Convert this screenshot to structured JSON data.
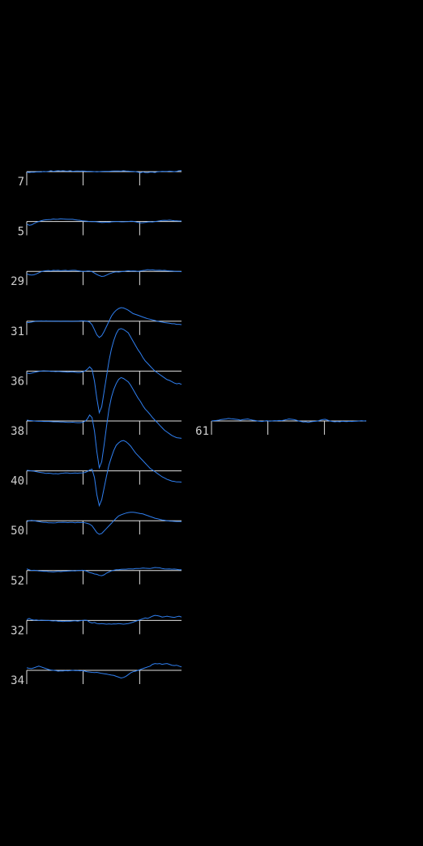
{
  "colors": {
    "background": "#000000",
    "trace": "#2f7ff0",
    "axis": "#e0e0e0",
    "label": "#cfcfcf"
  },
  "chart_data": {
    "type": "line",
    "description_scale": "waveform amplitude, arbitrary units (positive = up)",
    "x": [
      0,
      1,
      2,
      3,
      4,
      5,
      6,
      7,
      8,
      9,
      10,
      11,
      12,
      13,
      14,
      15,
      16,
      17,
      18,
      19,
      20,
      21,
      22,
      23,
      24,
      25,
      26,
      27,
      28,
      29,
      30,
      31,
      32,
      33,
      34,
      35,
      36,
      37,
      38,
      39,
      40,
      41,
      42,
      43,
      44,
      45,
      46,
      47,
      48,
      49,
      50,
      51,
      52,
      53,
      54,
      55,
      56,
      57,
      58,
      59,
      60,
      61,
      62,
      63,
      64
    ],
    "xlim": [
      0,
      64
    ],
    "xticks": [
      0,
      23.3,
      46.7
    ],
    "ylim": [
      -1,
      1
    ],
    "columns": [
      {
        "channels": [
          {
            "label": "7",
            "values": [
              -0.03,
              -0.05,
              -0.03,
              -0.04,
              -0.02,
              -0.01,
              -0.02,
              0.01,
              0.0,
              0.02,
              0.05,
              0.02,
              0.04,
              0.05,
              0.04,
              0.05,
              0.04,
              0.03,
              0.05,
              0.02,
              0.03,
              0.04,
              0.03,
              0.04,
              0.03,
              0.02,
              0.02,
              0.01,
              0.0,
              -0.01,
              0.0,
              0.01,
              0.02,
              0.02,
              0.02,
              0.03,
              0.04,
              0.04,
              0.04,
              0.03,
              0.05,
              0.04,
              0.03,
              0.02,
              0.01,
              0.0,
              -0.03,
              -0.07,
              -0.02,
              -0.05,
              -0.06,
              -0.03,
              -0.03,
              -0.05,
              -0.01,
              0.0,
              0.02,
              0.01,
              0.01,
              0.03,
              0.02,
              0.0,
              0.02,
              0.05,
              0.06
            ]
          },
          {
            "label": "5",
            "values": [
              -0.15,
              -0.22,
              -0.2,
              -0.12,
              -0.05,
              0.0,
              0.05,
              0.08,
              0.1,
              0.11,
              0.12,
              0.15,
              0.13,
              0.14,
              0.16,
              0.15,
              0.14,
              0.13,
              0.13,
              0.13,
              0.1,
              0.08,
              0.07,
              0.04,
              0.03,
              0.02,
              0.0,
              -0.01,
              0.0,
              -0.02,
              -0.04,
              -0.06,
              -0.05,
              -0.04,
              -0.05,
              -0.02,
              -0.01,
              0.0,
              0.0,
              -0.02,
              -0.02,
              -0.01,
              0.0,
              0.02,
              0.01,
              -0.02,
              -0.05,
              -0.08,
              -0.07,
              -0.05,
              -0.03,
              -0.02,
              -0.03,
              0.0,
              0.02,
              0.04,
              0.06,
              0.07,
              0.06,
              0.08,
              0.06,
              0.05,
              0.04,
              0.03,
              0.03
            ]
          },
          {
            "label": "29",
            "values": [
              -0.15,
              -0.2,
              -0.22,
              -0.2,
              -0.15,
              -0.08,
              -0.02,
              0.02,
              0.04,
              0.05,
              0.03,
              0.06,
              0.05,
              0.06,
              0.04,
              0.05,
              0.06,
              0.04,
              0.05,
              0.06,
              0.06,
              0.04,
              0.02,
              0.0,
              0.0,
              0.02,
              0.02,
              -0.02,
              -0.1,
              -0.18,
              -0.25,
              -0.3,
              -0.28,
              -0.22,
              -0.15,
              -0.1,
              -0.05,
              -0.03,
              -0.04,
              -0.02,
              0.0,
              0.02,
              0.04,
              0.02,
              0.03,
              0.02,
              0.0,
              0.03,
              0.05,
              0.07,
              0.1,
              0.08,
              0.09,
              0.07,
              0.06,
              0.07,
              0.05,
              0.06,
              0.04,
              0.03,
              0.02,
              0.01,
              0.0,
              0.0,
              -0.02
            ]
          },
          {
            "label": "31",
            "values": [
              -0.08,
              -0.08,
              -0.05,
              -0.02,
              0.0,
              0.01,
              0.02,
              0.01,
              0.02,
              0.01,
              0.01,
              0.0,
              0.01,
              0.0,
              -0.01,
              0.0,
              0.01,
              0.0,
              -0.01,
              -0.01,
              0.0,
              0.01,
              0.02,
              0.03,
              0.02,
              0.0,
              -0.05,
              -0.2,
              -0.5,
              -0.8,
              -0.95,
              -0.85,
              -0.6,
              -0.3,
              0.0,
              0.3,
              0.5,
              0.65,
              0.75,
              0.8,
              0.78,
              0.72,
              0.65,
              0.55,
              0.45,
              0.4,
              0.35,
              0.3,
              0.25,
              0.2,
              0.15,
              0.12,
              0.08,
              0.05,
              0.0,
              -0.03,
              -0.05,
              -0.08,
              -0.1,
              -0.12,
              -0.15,
              -0.15,
              -0.18,
              -0.18,
              -0.2
            ]
          },
          {
            "label": "36",
            "values": [
              -0.1,
              -0.15,
              -0.12,
              -0.08,
              -0.05,
              -0.02,
              0.0,
              0.02,
              0.01,
              0.0,
              -0.02,
              -0.02,
              -0.03,
              -0.02,
              -0.03,
              -0.04,
              -0.05,
              -0.06,
              -0.05,
              -0.04,
              -0.06,
              -0.08,
              -0.08,
              -0.05,
              0.0,
              0.1,
              0.25,
              0.1,
              -0.6,
              -1.6,
              -2.45,
              -2.1,
              -1.2,
              -0.3,
              0.6,
              1.3,
              1.8,
              2.2,
              2.45,
              2.5,
              2.45,
              2.35,
              2.25,
              2.0,
              1.75,
              1.5,
              1.25,
              1.05,
              0.8,
              0.6,
              0.45,
              0.3,
              0.15,
              0.0,
              -0.1,
              -0.2,
              -0.3,
              -0.4,
              -0.5,
              -0.55,
              -0.62,
              -0.7,
              -0.75,
              -0.72,
              -0.78
            ]
          },
          {
            "label": "38",
            "values": [
              0.05,
              0.03,
              0.02,
              0.0,
              -0.01,
              -0.02,
              -0.02,
              -0.03,
              -0.03,
              -0.03,
              -0.04,
              -0.05,
              -0.05,
              -0.05,
              -0.06,
              -0.06,
              -0.07,
              -0.08,
              -0.08,
              -0.07,
              -0.09,
              -0.1,
              -0.1,
              -0.08,
              -0.03,
              0.1,
              0.35,
              0.2,
              -0.6,
              -1.8,
              -2.75,
              -2.4,
              -1.4,
              -0.3,
              0.7,
              1.4,
              1.85,
              2.2,
              2.45,
              2.55,
              2.5,
              2.4,
              2.3,
              2.1,
              1.85,
              1.6,
              1.35,
              1.15,
              0.9,
              0.7,
              0.55,
              0.38,
              0.2,
              0.05,
              -0.1,
              -0.25,
              -0.4,
              -0.55,
              -0.65,
              -0.75,
              -0.85,
              -0.92,
              -0.98,
              -1.0,
              -1.02
            ]
          },
          {
            "label": "40",
            "values": [
              0.03,
              0.02,
              0.0,
              -0.02,
              -0.05,
              -0.08,
              -0.1,
              -0.12,
              -0.15,
              -0.14,
              -0.15,
              -0.17,
              -0.16,
              -0.18,
              -0.15,
              -0.14,
              -0.12,
              -0.13,
              -0.15,
              -0.14,
              -0.13,
              -0.14,
              -0.13,
              -0.12,
              -0.1,
              -0.05,
              0.05,
              0.1,
              -0.4,
              -1.4,
              -2.05,
              -1.7,
              -1.0,
              -0.3,
              0.35,
              0.8,
              1.2,
              1.5,
              1.65,
              1.75,
              1.78,
              1.72,
              1.6,
              1.45,
              1.25,
              1.05,
              0.9,
              0.75,
              0.6,
              0.45,
              0.3,
              0.15,
              0.05,
              -0.05,
              -0.15,
              -0.25,
              -0.35,
              -0.42,
              -0.5,
              -0.55,
              -0.6,
              -0.62,
              -0.65,
              -0.65,
              -0.66
            ]
          },
          {
            "label": "50",
            "values": [
              -0.05,
              0.0,
              0.02,
              0.0,
              -0.03,
              -0.05,
              -0.08,
              -0.1,
              -0.1,
              -0.12,
              -0.12,
              -0.13,
              -0.12,
              -0.1,
              -0.1,
              -0.09,
              -0.1,
              -0.11,
              -0.1,
              -0.1,
              -0.12,
              -0.1,
              -0.11,
              -0.1,
              -0.12,
              -0.15,
              -0.2,
              -0.3,
              -0.5,
              -0.7,
              -0.8,
              -0.75,
              -0.6,
              -0.45,
              -0.3,
              -0.15,
              0.0,
              0.15,
              0.28,
              0.35,
              0.4,
              0.45,
              0.48,
              0.5,
              0.5,
              0.48,
              0.45,
              0.42,
              0.4,
              0.35,
              0.3,
              0.25,
              0.2,
              0.15,
              0.12,
              0.08,
              0.05,
              0.03,
              0.0,
              -0.02,
              -0.03,
              -0.04,
              -0.05,
              -0.05,
              -0.05
            ]
          },
          {
            "label": "52",
            "values": [
              0.1,
              0.05,
              0.0,
              0.02,
              0.0,
              -0.02,
              -0.03,
              -0.05,
              -0.04,
              -0.06,
              -0.07,
              -0.08,
              -0.06,
              -0.05,
              -0.06,
              -0.05,
              -0.04,
              -0.03,
              -0.02,
              -0.01,
              -0.02,
              0.0,
              0.01,
              0.02,
              0.0,
              -0.05,
              -0.12,
              -0.15,
              -0.2,
              -0.22,
              -0.28,
              -0.3,
              -0.25,
              -0.15,
              -0.08,
              -0.02,
              0.02,
              0.05,
              0.05,
              0.07,
              0.08,
              0.08,
              0.1,
              0.1,
              0.09,
              0.12,
              0.12,
              0.13,
              0.15,
              0.14,
              0.13,
              0.12,
              0.15,
              0.18,
              0.17,
              0.16,
              0.12,
              0.1,
              0.09,
              0.1,
              0.08,
              0.09,
              0.07,
              0.05,
              0.05
            ]
          },
          {
            "label": "32",
            "values": [
              0.05,
              0.12,
              0.05,
              0.02,
              0.03,
              0.0,
              0.02,
              0.01,
              0.0,
              0.0,
              -0.02,
              -0.03,
              -0.02,
              -0.05,
              -0.04,
              -0.06,
              -0.05,
              -0.04,
              -0.05,
              -0.03,
              -0.02,
              -0.04,
              -0.02,
              0.0,
              0.02,
              0.0,
              -0.1,
              -0.15,
              -0.12,
              -0.18,
              -0.2,
              -0.18,
              -0.2,
              -0.22,
              -0.2,
              -0.22,
              -0.2,
              -0.21,
              -0.18,
              -0.2,
              -0.22,
              -0.2,
              -0.18,
              -0.15,
              -0.1,
              -0.05,
              0.0,
              0.05,
              0.1,
              0.15,
              0.12,
              0.18,
              0.25,
              0.3,
              0.28,
              0.25,
              0.2,
              0.22,
              0.25,
              0.22,
              0.2,
              0.18,
              0.22,
              0.25,
              0.2
            ]
          },
          {
            "label": "34",
            "values": [
              0.15,
              0.12,
              0.1,
              0.15,
              0.2,
              0.25,
              0.2,
              0.15,
              0.1,
              0.05,
              0.02,
              0.0,
              -0.02,
              -0.05,
              -0.03,
              -0.04,
              -0.02,
              -0.03,
              -0.02,
              0.0,
              -0.02,
              -0.01,
              -0.03,
              -0.02,
              -0.05,
              -0.08,
              -0.1,
              -0.12,
              -0.13,
              -0.12,
              -0.15,
              -0.18,
              -0.2,
              -0.22,
              -0.25,
              -0.28,
              -0.3,
              -0.35,
              -0.4,
              -0.45,
              -0.42,
              -0.35,
              -0.25,
              -0.15,
              -0.08,
              -0.05,
              0.0,
              0.05,
              0.1,
              0.15,
              0.2,
              0.25,
              0.35,
              0.4,
              0.38,
              0.4,
              0.35,
              0.38,
              0.4,
              0.35,
              0.3,
              0.28,
              0.3,
              0.25,
              0.2
            ]
          }
        ]
      },
      {
        "channels": [
          {
            "label": "61",
            "values": [
              0.0,
              0.02,
              0.03,
              0.05,
              0.08,
              0.1,
              0.12,
              0.15,
              0.13,
              0.12,
              0.1,
              0.08,
              0.05,
              0.08,
              0.1,
              0.12,
              0.08,
              0.05,
              0.03,
              0.0,
              -0.02,
              -0.03,
              0.0,
              0.02,
              -0.01,
              0.0,
              0.02,
              0.01,
              0.03,
              0.02,
              0.05,
              0.08,
              0.12,
              0.1,
              0.08,
              0.05,
              0.0,
              -0.03,
              -0.06,
              -0.05,
              -0.08,
              -0.05,
              -0.03,
              -0.02,
              0.0,
              0.05,
              0.08,
              0.1,
              0.05,
              0.0,
              -0.03,
              -0.05,
              -0.03,
              -0.05,
              -0.02,
              -0.03,
              -0.04,
              -0.02,
              -0.03,
              -0.02,
              -0.01,
              0.0,
              0.02,
              0.0,
              0.01
            ]
          }
        ]
      }
    ]
  }
}
